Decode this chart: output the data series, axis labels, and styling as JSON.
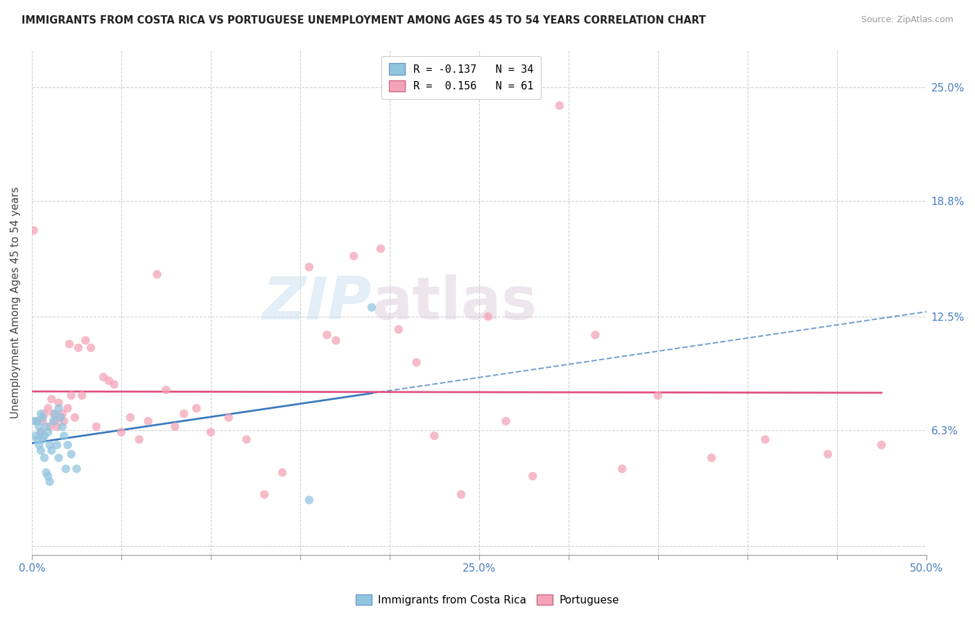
{
  "title": "IMMIGRANTS FROM COSTA RICA VS PORTUGUESE UNEMPLOYMENT AMONG AGES 45 TO 54 YEARS CORRELATION CHART",
  "source": "Source: ZipAtlas.com",
  "ylabel": "Unemployment Among Ages 45 to 54 years",
  "xlim": [
    0.0,
    0.5
  ],
  "ylim": [
    -0.005,
    0.27
  ],
  "ytick_vals": [
    0.0,
    0.063,
    0.125,
    0.188,
    0.25
  ],
  "ytick_labels": [
    "",
    "6.3%",
    "12.5%",
    "18.8%",
    "25.0%"
  ],
  "xtick_vals": [
    0.0,
    0.05,
    0.1,
    0.15,
    0.2,
    0.25,
    0.3,
    0.35,
    0.4,
    0.45,
    0.5
  ],
  "xtick_labels": [
    "0.0%",
    "",
    "",
    "",
    "",
    "25.0%",
    "",
    "",
    "",
    "",
    "50.0%"
  ],
  "blue_color": "#92c5de",
  "pink_color": "#f4a4b8",
  "blue_line_color": "#3a7abf",
  "pink_line_color": "#e05080",
  "blue_r": -0.137,
  "blue_n": 34,
  "pink_r": 0.156,
  "pink_n": 61,
  "watermark": "ZIPatlas",
  "blue_scatter_x": [
    0.001,
    0.002,
    0.003,
    0.003,
    0.004,
    0.004,
    0.005,
    0.005,
    0.005,
    0.006,
    0.006,
    0.007,
    0.007,
    0.008,
    0.008,
    0.009,
    0.009,
    0.01,
    0.01,
    0.011,
    0.012,
    0.013,
    0.014,
    0.015,
    0.015,
    0.016,
    0.017,
    0.018,
    0.019,
    0.02,
    0.022,
    0.025,
    0.155,
    0.19
  ],
  "blue_scatter_y": [
    0.068,
    0.06,
    0.068,
    0.058,
    0.065,
    0.055,
    0.072,
    0.062,
    0.052,
    0.07,
    0.058,
    0.06,
    0.048,
    0.065,
    0.04,
    0.062,
    0.038,
    0.055,
    0.035,
    0.052,
    0.068,
    0.072,
    0.055,
    0.075,
    0.048,
    0.07,
    0.065,
    0.06,
    0.042,
    0.055,
    0.05,
    0.042,
    0.025,
    0.13
  ],
  "pink_scatter_x": [
    0.001,
    0.003,
    0.005,
    0.006,
    0.007,
    0.009,
    0.01,
    0.011,
    0.012,
    0.013,
    0.014,
    0.015,
    0.016,
    0.017,
    0.018,
    0.02,
    0.021,
    0.022,
    0.024,
    0.026,
    0.028,
    0.03,
    0.033,
    0.036,
    0.04,
    0.043,
    0.046,
    0.05,
    0.055,
    0.06,
    0.065,
    0.07,
    0.075,
    0.08,
    0.085,
    0.092,
    0.1,
    0.11,
    0.12,
    0.13,
    0.14,
    0.155,
    0.165,
    0.17,
    0.18,
    0.195,
    0.205,
    0.215,
    0.225,
    0.24,
    0.255,
    0.265,
    0.28,
    0.295,
    0.315,
    0.33,
    0.35,
    0.38,
    0.41,
    0.445,
    0.475
  ],
  "pink_scatter_y": [
    0.172,
    0.068,
    0.062,
    0.068,
    0.072,
    0.075,
    0.065,
    0.08,
    0.072,
    0.068,
    0.065,
    0.078,
    0.07,
    0.072,
    0.068,
    0.075,
    0.11,
    0.082,
    0.07,
    0.108,
    0.082,
    0.112,
    0.108,
    0.065,
    0.092,
    0.09,
    0.088,
    0.062,
    0.07,
    0.058,
    0.068,
    0.148,
    0.085,
    0.065,
    0.072,
    0.075,
    0.062,
    0.07,
    0.058,
    0.028,
    0.04,
    0.152,
    0.115,
    0.112,
    0.158,
    0.162,
    0.118,
    0.1,
    0.06,
    0.028,
    0.125,
    0.068,
    0.038,
    0.24,
    0.115,
    0.042,
    0.082,
    0.048,
    0.058,
    0.05,
    0.055
  ]
}
